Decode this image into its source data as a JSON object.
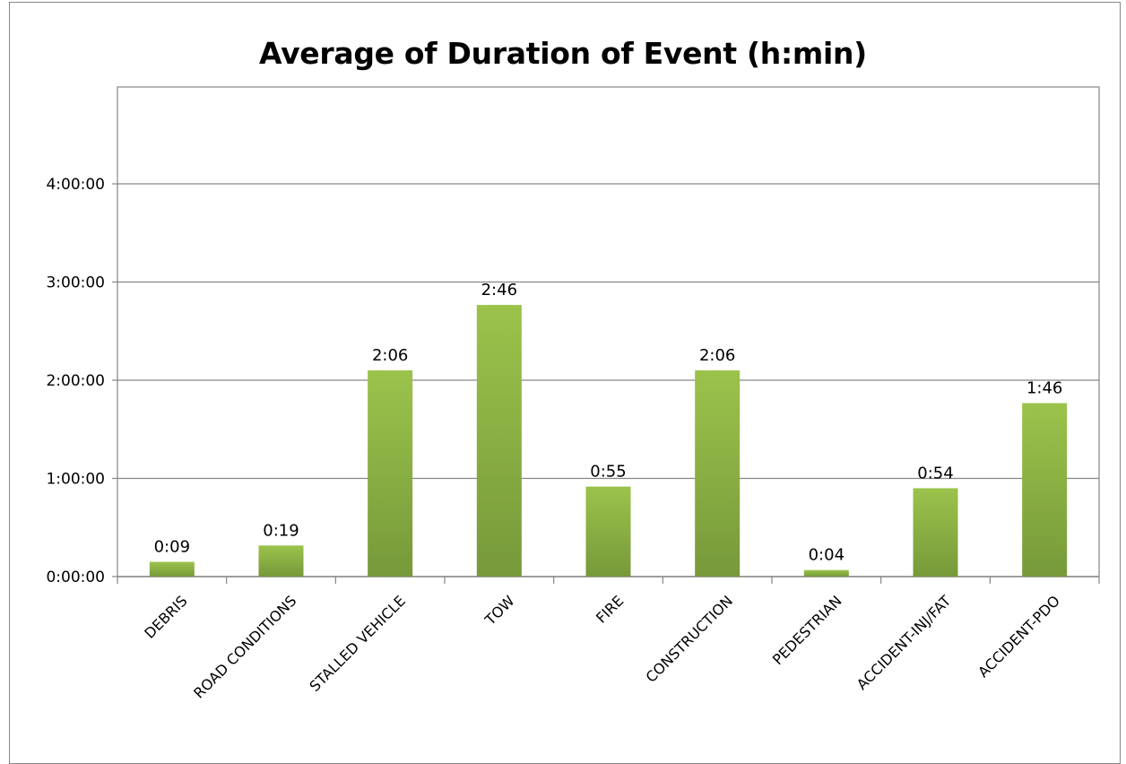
{
  "chart_data": {
    "type": "bar",
    "title": "Average of Duration of Event (h:min)",
    "xlabel": "",
    "ylabel": "",
    "categories": [
      "DEBRIS",
      "ROAD CONDITIONS",
      "STALLED VEHICLE",
      "TOW",
      "FIRE",
      "CONSTRUCTION",
      "PEDESTRIAN",
      "ACCIDENT-INJ/FAT",
      "ACCIDENT-PDO"
    ],
    "values_minutes": [
      9,
      19,
      126,
      166,
      55,
      126,
      4,
      54,
      106
    ],
    "data_labels": [
      "0:09",
      "0:19",
      "2:06",
      "2:46",
      "0:55",
      "2:06",
      "0:04",
      "0:54",
      "1:46"
    ],
    "y_ticks": [
      "0:00:00",
      "1:00:00",
      "2:00:00",
      "3:00:00",
      "4:00:00"
    ],
    "ylim_minutes": [
      0,
      300
    ],
    "grid": true,
    "legend": "none",
    "colors": {
      "bar_top": "#9bc34b",
      "bar_bottom": "#77993a",
      "grid": "#868686",
      "axis": "#868686"
    }
  }
}
